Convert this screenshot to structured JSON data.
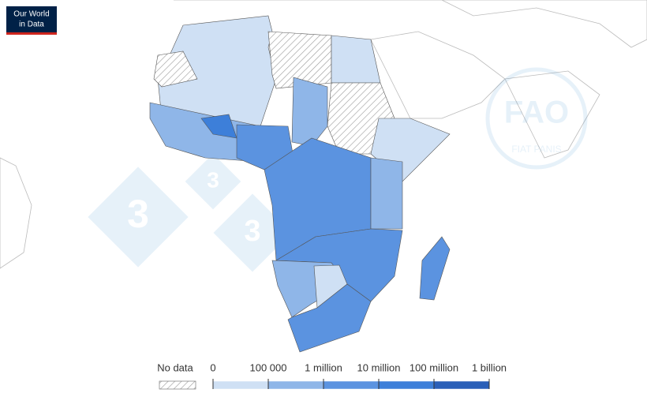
{
  "logo": {
    "lines": [
      "Our World",
      "in Data"
    ]
  },
  "watermark": {
    "digits": [
      "3",
      "3",
      "3"
    ],
    "fao": "FAO",
    "motto": "FIAT PANIS"
  },
  "legend": {
    "no_data": "No data",
    "ticks": [
      "0",
      "100 000",
      "1 million",
      "10 million",
      "100 million",
      "1 billion"
    ],
    "colors": [
      "#cfe0f4",
      "#8fb6e8",
      "#5b93e0",
      "#3d7fd9",
      "#2a5fb8"
    ]
  }
}
